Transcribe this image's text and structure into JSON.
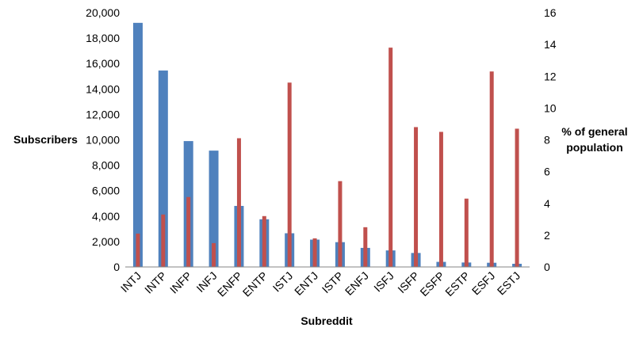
{
  "chart_data": {
    "type": "bar",
    "categories": [
      "INTJ",
      "INTP",
      "INFP",
      "INFJ",
      "ENFP",
      "ENTP",
      "ISTJ",
      "ENTJ",
      "ISTP",
      "ENFJ",
      "ISFJ",
      "ISFP",
      "ESFP",
      "ESTP",
      "ESFJ",
      "ESTJ"
    ],
    "series": [
      {
        "axis": "left",
        "color": "#4f81bd",
        "values": [
          19200,
          15450,
          9900,
          9150,
          4800,
          3750,
          2650,
          2150,
          1950,
          1500,
          1300,
          1100,
          400,
          350,
          330,
          250
        ]
      },
      {
        "axis": "right",
        "color": "#c0504d",
        "values": [
          2.1,
          3.3,
          4.4,
          1.5,
          8.1,
          3.2,
          11.6,
          1.8,
          5.4,
          2.5,
          13.8,
          8.8,
          8.5,
          4.3,
          12.3,
          8.7
        ]
      }
    ],
    "xlabel": "Subreddit",
    "ylabel": "Subscribers",
    "y2label_line1": "% of general",
    "y2label_line2": "population",
    "ylim": [
      0,
      20000
    ],
    "y2lim": [
      0,
      16
    ],
    "yticks": [
      "0",
      "2,000",
      "4,000",
      "6,000",
      "8,000",
      "10,000",
      "12,000",
      "14,000",
      "16,000",
      "18,000",
      "20,000"
    ],
    "y2ticks": [
      "0",
      "2",
      "4",
      "6",
      "8",
      "10",
      "12",
      "14",
      "16"
    ],
    "grid": false,
    "legend": "none"
  }
}
